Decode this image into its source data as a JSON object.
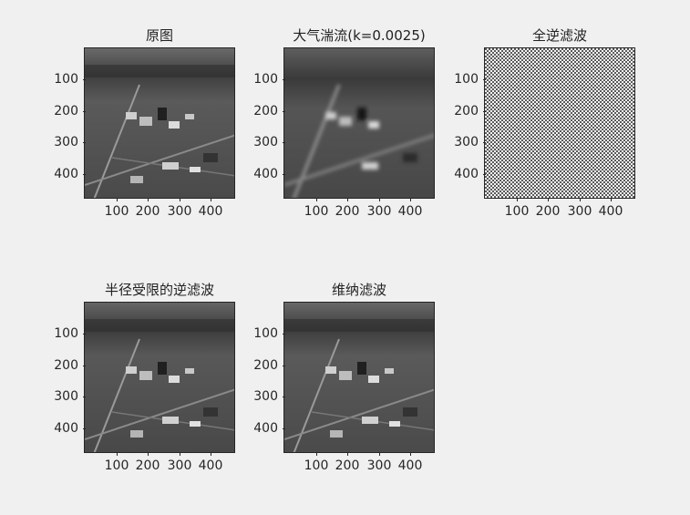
{
  "figure": {
    "subplots": [
      {
        "id": "original",
        "title": "原图",
        "style": "aerial-sharp"
      },
      {
        "id": "turbulence",
        "title": "大气湍流(k=0.0025)",
        "style": "aerial-blurred"
      },
      {
        "id": "full-inverse",
        "title": "全逆滤波",
        "style": "noise"
      },
      {
        "id": "radius-limited",
        "title": "半径受限的逆滤波",
        "style": "aerial-sharp"
      },
      {
        "id": "wiener",
        "title": "维纳滤波",
        "style": "aerial-sharp"
      }
    ],
    "axes": {
      "yticks": [
        "100",
        "200",
        "300",
        "400"
      ],
      "xticks": [
        "100",
        "200",
        "300",
        "400"
      ]
    }
  }
}
